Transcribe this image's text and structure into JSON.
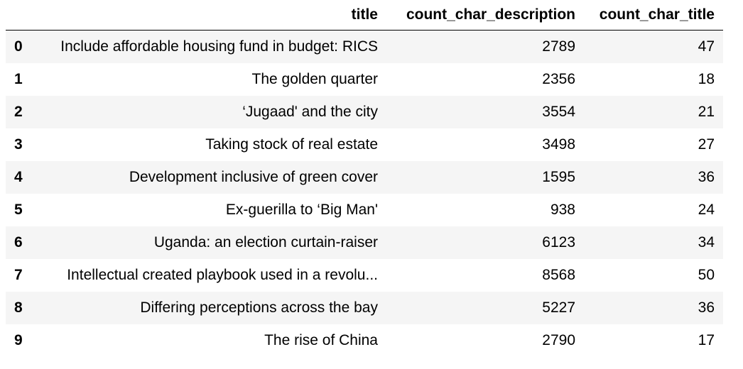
{
  "dataframe": {
    "columns": [
      "title",
      "count_char_description",
      "count_char_title"
    ],
    "rows": [
      {
        "index": "0",
        "title": "Include affordable housing fund in budget: RICS",
        "count_char_description": "2789",
        "count_char_title": "47"
      },
      {
        "index": "1",
        "title": "The golden quarter",
        "count_char_description": "2356",
        "count_char_title": "18"
      },
      {
        "index": "2",
        "title": "‘Jugaad' and the city",
        "count_char_description": "3554",
        "count_char_title": "21"
      },
      {
        "index": "3",
        "title": "Taking stock of real estate",
        "count_char_description": "3498",
        "count_char_title": "27"
      },
      {
        "index": "4",
        "title": "Development inclusive of green cover",
        "count_char_description": "1595",
        "count_char_title": "36"
      },
      {
        "index": "5",
        "title": "Ex-guerilla to ‘Big Man'",
        "count_char_description": "938",
        "count_char_title": "24"
      },
      {
        "index": "6",
        "title": "Uganda: an election curtain-raiser",
        "count_char_description": "6123",
        "count_char_title": "34"
      },
      {
        "index": "7",
        "title": "Intellectual created playbook used in a revolu...",
        "count_char_description": "8568",
        "count_char_title": "50"
      },
      {
        "index": "8",
        "title": "Differing perceptions across the bay",
        "count_char_description": "5227",
        "count_char_title": "36"
      },
      {
        "index": "9",
        "title": "The rise of China",
        "count_char_description": "2790",
        "count_char_title": "17"
      }
    ]
  },
  "colors": {
    "row_stripe": "#f5f5f5",
    "background": "#ffffff",
    "text": "#000000"
  }
}
